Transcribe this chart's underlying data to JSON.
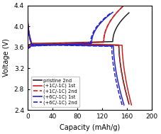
{
  "title": "",
  "xlabel": "Capacity (mAh/g)",
  "ylabel": "Voltage (V)",
  "xlim": [
    0,
    200
  ],
  "ylim": [
    2.4,
    4.4
  ],
  "xticks": [
    0,
    40,
    80,
    120,
    160,
    200
  ],
  "yticks": [
    2.4,
    2.8,
    3.2,
    3.6,
    4.0,
    4.4
  ],
  "legend": [
    {
      "label": "pristine 2nd",
      "color": "#222222",
      "ls": "-"
    },
    {
      "label": "(+1C/-1C) 1st",
      "color": "#cc2222",
      "ls": "-"
    },
    {
      "label": "(+1C/-1C) 2nd",
      "color": "#cc2222",
      "ls": "--"
    },
    {
      "label": "(+6C/-1C) 1st",
      "color": "#2222cc",
      "ls": "-"
    },
    {
      "label": "(+6C/-1C) 2nd",
      "color": "#2222cc",
      "ls": "--"
    }
  ],
  "figsize": [
    2.27,
    1.89
  ],
  "dpi": 100
}
